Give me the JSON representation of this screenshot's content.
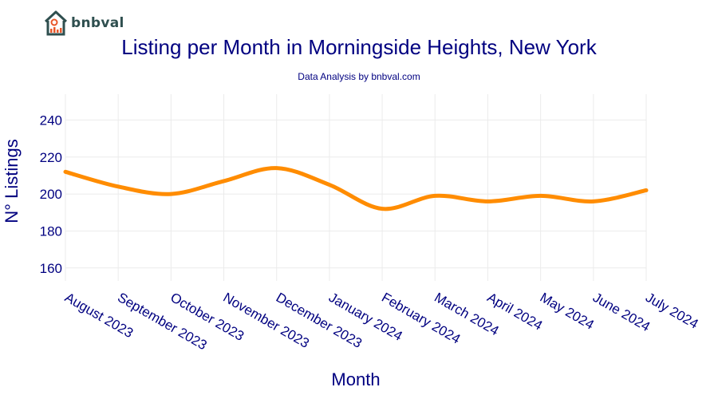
{
  "brand": {
    "logo_text": "bnbval"
  },
  "chart_data": {
    "type": "line",
    "title": "Listing per Month in Morningside Heights, New York",
    "subtitle": "Data Analysis by bnbval.com",
    "xlabel": "Month",
    "ylabel": "N° Listings",
    "categories": [
      "August 2023",
      "September 2023",
      "October 2023",
      "November 2023",
      "December 2023",
      "January 2024",
      "February 2024",
      "March 2024",
      "April 2024",
      "May 2024",
      "June 2024",
      "July 2024"
    ],
    "series": [
      {
        "values": [
          212,
          204,
          200,
          207,
          214,
          205,
          192,
          199,
          196,
          199,
          196,
          202
        ]
      }
    ],
    "yticks": [
      160,
      180,
      200,
      220,
      240
    ],
    "ylim": [
      153,
      254
    ],
    "grid": true,
    "colors": {
      "line": "#ff8c00",
      "text": "#000080",
      "grid": "#ebebeb"
    }
  }
}
